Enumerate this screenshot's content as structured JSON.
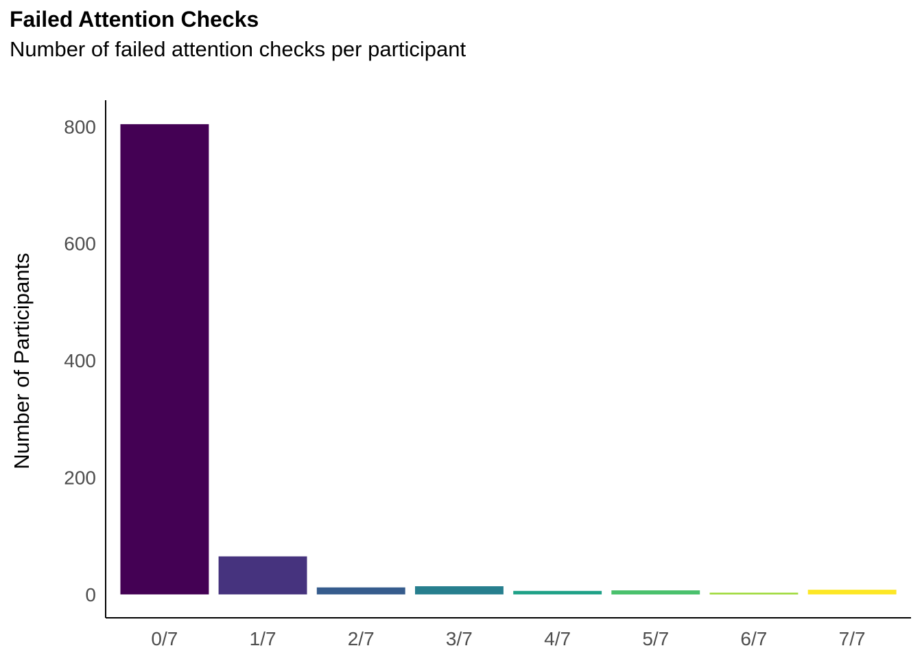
{
  "chart_data": {
    "type": "bar",
    "title": "Failed Attention Checks",
    "subtitle": "Number of failed attention checks per participant",
    "xlabel": "",
    "ylabel": "Number of Participants",
    "categories": [
      "0/7",
      "1/7",
      "2/7",
      "3/7",
      "4/7",
      "5/7",
      "6/7",
      "7/7"
    ],
    "values": [
      804,
      65,
      12,
      14,
      6,
      7,
      3,
      8
    ],
    "colors": [
      "#440154",
      "#46337E",
      "#365C8D",
      "#277F8E",
      "#1FA187",
      "#4AC16D",
      "#9FDA3A",
      "#FDE725"
    ],
    "yticks": [
      0,
      200,
      400,
      600,
      800
    ],
    "ylim": [
      -40,
      845
    ],
    "grid": false,
    "legend": "none"
  }
}
